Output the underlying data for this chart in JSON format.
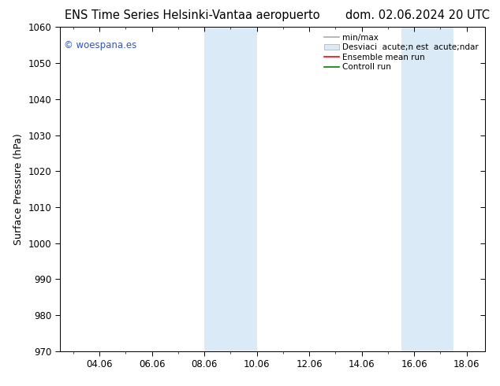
{
  "title_left": "ENS Time Series Helsinki-Vantaa aeropuerto",
  "title_right": "dom. 02.06.2024 20 UTC",
  "ylabel": "Surface Pressure (hPa)",
  "ylim": [
    970,
    1060
  ],
  "yticks": [
    970,
    980,
    990,
    1000,
    1010,
    1020,
    1030,
    1040,
    1050,
    1060
  ],
  "xlim_start": 2.5,
  "xlim_end": 18.7,
  "xtick_labels": [
    "04.06",
    "06.06",
    "08.06",
    "10.06",
    "12.06",
    "14.06",
    "16.06",
    "18.06"
  ],
  "xtick_positions": [
    4,
    6,
    8,
    10,
    12,
    14,
    16,
    18
  ],
  "shade_bands": [
    {
      "x_start": 8.0,
      "x_end": 10.0
    },
    {
      "x_start": 15.5,
      "x_end": 17.5
    }
  ],
  "shade_color": "#daeaf7",
  "bg_color": "#ffffff",
  "legend_line1_label": "min/max",
  "legend_line1_color": "#aaaaaa",
  "legend_patch_label": "Desviaci  acute;n est  acute;ndar",
  "legend_patch_color": "#daeaf7",
  "legend_line3_label": "Ensemble mean run",
  "legend_line3_color": "red",
  "legend_line4_label": "Controll run",
  "legend_line4_color": "green",
  "watermark_text": "© woespana.es",
  "watermark_color": "#3355bb",
  "title_fontsize": 10.5,
  "axis_label_fontsize": 9,
  "tick_fontsize": 8.5,
  "legend_fontsize": 7.5
}
